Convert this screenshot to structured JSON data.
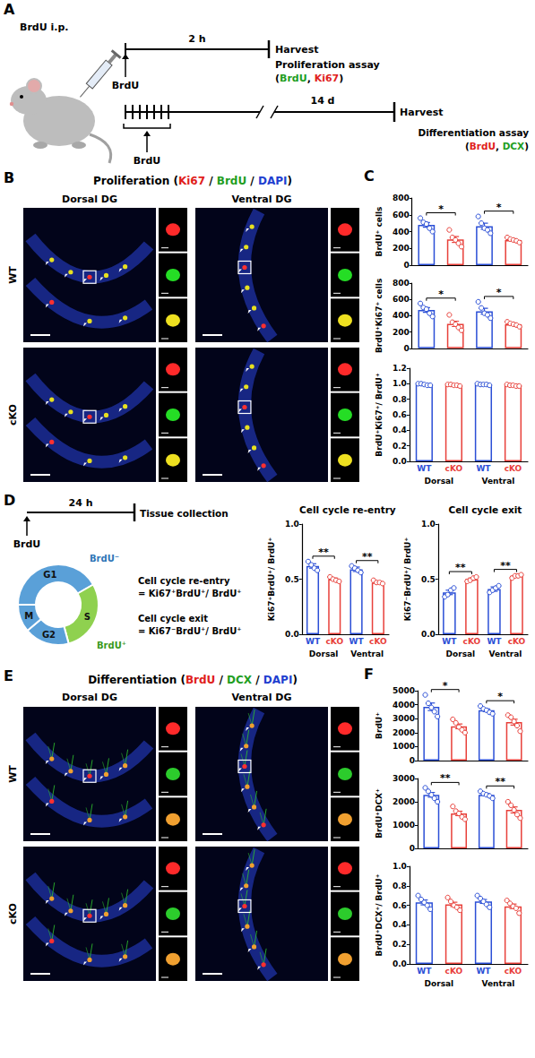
{
  "panel_labels": [
    "A",
    "B",
    "C",
    "D",
    "E",
    "F"
  ],
  "schematic_A": {
    "injection": "BrdU i.p.",
    "proliferation": {
      "pulse": "BrdU",
      "duration": "2 h",
      "end": "Harvest",
      "assay": "Proliferation assay",
      "markers": [
        {
          "text": "(",
          "color": "#000000"
        },
        {
          "text": "BrdU",
          "color": "#1f9e1f"
        },
        {
          "text": ", ",
          "color": "#000000"
        },
        {
          "text": "Ki67",
          "color": "#e0201b"
        },
        {
          "text": ")",
          "color": "#000000"
        }
      ]
    },
    "differentiation": {
      "pulse": "BrdU",
      "duration": "14 d",
      "end": "Harvest",
      "assay": "Differentiation assay",
      "markers": [
        {
          "text": "(",
          "color": "#000000"
        },
        {
          "text": "BrdU",
          "color": "#e0201b"
        },
        {
          "text": ", ",
          "color": "#000000"
        },
        {
          "text": "DCX",
          "color": "#1f9e1f"
        },
        {
          "text": ")",
          "color": "#000000"
        }
      ]
    }
  },
  "images_B": {
    "title": [
      {
        "text": "Proliferation (",
        "color": "#000000"
      },
      {
        "text": "Ki67",
        "color": "#e0201b"
      },
      {
        "text": " / ",
        "color": "#000000"
      },
      {
        "text": "BrdU",
        "color": "#1f9e1f"
      },
      {
        "text": " / ",
        "color": "#000000"
      },
      {
        "text": "DAPI",
        "color": "#1f3fd0"
      },
      {
        "text": ")",
        "color": "#000000"
      }
    ],
    "columns": [
      "Dorsal DG",
      "Ventral DG"
    ],
    "rows": [
      "WT",
      "cKO"
    ]
  },
  "schematic_D": {
    "pulse": "BrdU",
    "duration": "24 h",
    "end": "Tissue collection",
    "phases": [
      "G1",
      "S",
      "G2",
      "M"
    ],
    "unlabeled": "BrdU⁻",
    "labeled": "BrdU⁺",
    "formulas": [
      {
        "name": "Cell cycle re-entry",
        "expression": "= Ki67⁺BrdU⁺/ BrdU⁺"
      },
      {
        "name": "Cell cycle exit",
        "expression": "= Ki67⁻BrdU⁺/ BrdU⁺"
      }
    ]
  },
  "images_E": {
    "title": [
      {
        "text": "Differentiation (",
        "color": "#000000"
      },
      {
        "text": "BrdU",
        "color": "#e0201b"
      },
      {
        "text": " / ",
        "color": "#000000"
      },
      {
        "text": "DCX",
        "color": "#1f9e1f"
      },
      {
        "text": " / ",
        "color": "#000000"
      },
      {
        "text": "DAPI",
        "color": "#1f3fd0"
      },
      {
        "text": ")",
        "color": "#000000"
      }
    ],
    "columns": [
      "Dorsal DG",
      "Ventral DG"
    ],
    "rows": [
      "WT",
      "cKO"
    ]
  },
  "chart_data": [
    {
      "type": "bar",
      "ylabel": "BrdU⁺ cells",
      "categories": [
        "WT",
        "cKO",
        "WT",
        "cKO"
      ],
      "colors": [
        "#2b4fd6",
        "#e8403a",
        "#2b4fd6",
        "#e8403a"
      ],
      "values": [
        480,
        306,
        464,
        300
      ],
      "errors": [
        28,
        35,
        36,
        10
      ],
      "points": [
        [
          560,
          510,
          490,
          440,
          400
        ],
        [
          420,
          330,
          300,
          260,
          220
        ],
        [
          580,
          500,
          440,
          420,
          380
        ],
        [
          330,
          310,
          300,
          290,
          270
        ]
      ],
      "significance": [
        "*",
        "*"
      ],
      "ylim": [
        0,
        800
      ],
      "yticks": [
        0,
        200,
        400,
        600,
        800
      ],
      "tick_labels": "y"
    },
    {
      "type": "bar",
      "ylabel": "BrdU⁺Ki67⁺ cells",
      "categories": [
        "WT",
        "cKO",
        "WT",
        "cKO"
      ],
      "colors": [
        "#2b4fd6",
        "#e8403a",
        "#2b4fd6",
        "#e8403a"
      ],
      "values": [
        470,
        300,
        455,
        295
      ],
      "errors": [
        28,
        33,
        35,
        10
      ],
      "points": [
        [
          550,
          500,
          480,
          430,
          390
        ],
        [
          410,
          320,
          295,
          255,
          220
        ],
        [
          570,
          495,
          430,
          410,
          370
        ],
        [
          325,
          305,
          295,
          285,
          265
        ]
      ],
      "significance": [
        "*",
        "*"
      ],
      "ylim": [
        0,
        800
      ],
      "yticks": [
        0,
        200,
        400,
        600,
        800
      ],
      "tick_labels": "y"
    },
    {
      "type": "bar",
      "ylabel": "BrdU⁺Ki67⁺/ BrdU⁺",
      "categories": [
        "WT",
        "cKO",
        "WT",
        "cKO"
      ],
      "groups": [
        "Dorsal",
        "Ventral"
      ],
      "colors": [
        "#2b4fd6",
        "#e8403a",
        "#2b4fd6",
        "#e8403a"
      ],
      "values": [
        0.99,
        0.98,
        0.99,
        0.98
      ],
      "errors": [
        0.005,
        0.004,
        0.003,
        0.004
      ],
      "points": [
        [
          1.0,
          1.0,
          0.99,
          0.98,
          0.98
        ],
        [
          0.99,
          0.99,
          0.98,
          0.98,
          0.97
        ],
        [
          1.0,
          0.99,
          0.99,
          0.99,
          0.98
        ],
        [
          0.99,
          0.98,
          0.98,
          0.97,
          0.97
        ]
      ],
      "ylim": [
        0,
        1.2
      ],
      "yticks": [
        {
          "value": 0,
          "label": "0.0"
        },
        0.2,
        0.4,
        0.6,
        0.8,
        {
          "value": 1,
          "label": "1.0"
        },
        1.2
      ]
    },
    {
      "type": "bar",
      "title": "Cell cycle re-entry",
      "ylabel": "Ki67⁺BrdU⁺/ BrdU⁺",
      "categories": [
        "WT",
        "cKO",
        "WT",
        "cKO"
      ],
      "groups": [
        "Dorsal",
        "Ventral"
      ],
      "colors": [
        "#2b4fd6",
        "#e8403a",
        "#2b4fd6",
        "#e8403a"
      ],
      "values": [
        0.62,
        0.5,
        0.59,
        0.47
      ],
      "errors": [
        0.02,
        0.01,
        0.02,
        0.01
      ],
      "points": [
        [
          0.66,
          0.63,
          0.6,
          0.58
        ],
        [
          0.52,
          0.5,
          0.49,
          0.48
        ],
        [
          0.62,
          0.6,
          0.58,
          0.56
        ],
        [
          0.49,
          0.47,
          0.47,
          0.46
        ]
      ],
      "significance": [
        "**",
        "**"
      ],
      "ylim": [
        0,
        1
      ],
      "yticks": [
        {
          "value": 0,
          "label": "0.0"
        },
        0.5,
        {
          "value": 1,
          "label": "1.0"
        }
      ]
    },
    {
      "type": "bar",
      "title": "Cell cycle exit",
      "ylabel": "Ki67⁻BrdU⁺/ BrdU⁺",
      "categories": [
        "WT",
        "cKO",
        "WT",
        "cKO"
      ],
      "groups": [
        "Dorsal",
        "Ventral"
      ],
      "colors": [
        "#2b4fd6",
        "#e8403a",
        "#2b4fd6",
        "#e8403a"
      ],
      "values": [
        0.38,
        0.5,
        0.41,
        0.53
      ],
      "errors": [
        0.02,
        0.01,
        0.02,
        0.01
      ],
      "points": [
        [
          0.34,
          0.36,
          0.4,
          0.42
        ],
        [
          0.48,
          0.49,
          0.51,
          0.52
        ],
        [
          0.38,
          0.4,
          0.42,
          0.44
        ],
        [
          0.51,
          0.53,
          0.53,
          0.54
        ]
      ],
      "significance": [
        "**",
        "**"
      ],
      "ylim": [
        0,
        1
      ],
      "yticks": [
        {
          "value": 0,
          "label": "0.0"
        },
        0.5,
        {
          "value": 1,
          "label": "1.0"
        }
      ]
    },
    {
      "type": "bar",
      "ylabel": "BrdU⁺",
      "categories": [
        "WT",
        "cKO",
        "WT",
        "cKO"
      ],
      "colors": [
        "#2b4fd6",
        "#e8403a",
        "#2b4fd6",
        "#e8403a"
      ],
      "values": [
        3850,
        2450,
        3600,
        2750
      ],
      "errors": [
        270,
        170,
        100,
        210
      ],
      "points": [
        [
          4700,
          4100,
          3800,
          3500,
          3150
        ],
        [
          2950,
          2700,
          2400,
          2200,
          2000
        ],
        [
          3900,
          3700,
          3600,
          3450,
          3350
        ],
        [
          3250,
          3100,
          2800,
          2500,
          2100
        ]
      ],
      "significance": [
        "*",
        "*"
      ],
      "ylim": [
        0,
        5000
      ],
      "yticks": [
        0,
        1000,
        2000,
        3000,
        4000,
        5000
      ],
      "tick_labels": "y"
    },
    {
      "type": "bar",
      "ylabel": "BrdU⁺DCX⁺",
      "categories": [
        "WT",
        "cKO",
        "WT",
        "cKO"
      ],
      "colors": [
        "#2b4fd6",
        "#e8403a",
        "#2b4fd6",
        "#e8403a"
      ],
      "values": [
        2300,
        1500,
        2300,
        1650
      ],
      "errors": [
        100,
        95,
        50,
        130
      ],
      "points": [
        [
          2600,
          2450,
          2300,
          2150,
          2000
        ],
        [
          1800,
          1600,
          1500,
          1350,
          1250
        ],
        [
          2450,
          2350,
          2300,
          2250,
          2150
        ],
        [
          2000,
          1850,
          1650,
          1450,
          1300
        ]
      ],
      "significance": [
        "**",
        "**"
      ],
      "ylim": [
        0,
        3000
      ],
      "yticks": [
        0,
        1000,
        2000,
        3000
      ],
      "tick_labels": "y"
    },
    {
      "type": "bar",
      "ylabel": "BrdU⁺DCX⁺/ BrdU⁺",
      "categories": [
        "WT",
        "cKO",
        "WT",
        "cKO"
      ],
      "groups": [
        "Dorsal",
        "Ventral"
      ],
      "colors": [
        "#2b4fd6",
        "#e8403a",
        "#2b4fd6",
        "#e8403a"
      ],
      "values": [
        0.63,
        0.61,
        0.64,
        0.59
      ],
      "errors": [
        0.025,
        0.022,
        0.02,
        0.023
      ],
      "points": [
        [
          0.7,
          0.66,
          0.63,
          0.6,
          0.56
        ],
        [
          0.68,
          0.64,
          0.6,
          0.58,
          0.55
        ],
        [
          0.7,
          0.67,
          0.64,
          0.61,
          0.58
        ],
        [
          0.65,
          0.62,
          0.59,
          0.57,
          0.52
        ]
      ],
      "ylim": [
        0,
        1
      ],
      "yticks": [
        {
          "value": 0,
          "label": "0.0"
        },
        0.2,
        0.4,
        0.6,
        0.8,
        {
          "value": 1,
          "label": "1.0"
        }
      ]
    }
  ]
}
